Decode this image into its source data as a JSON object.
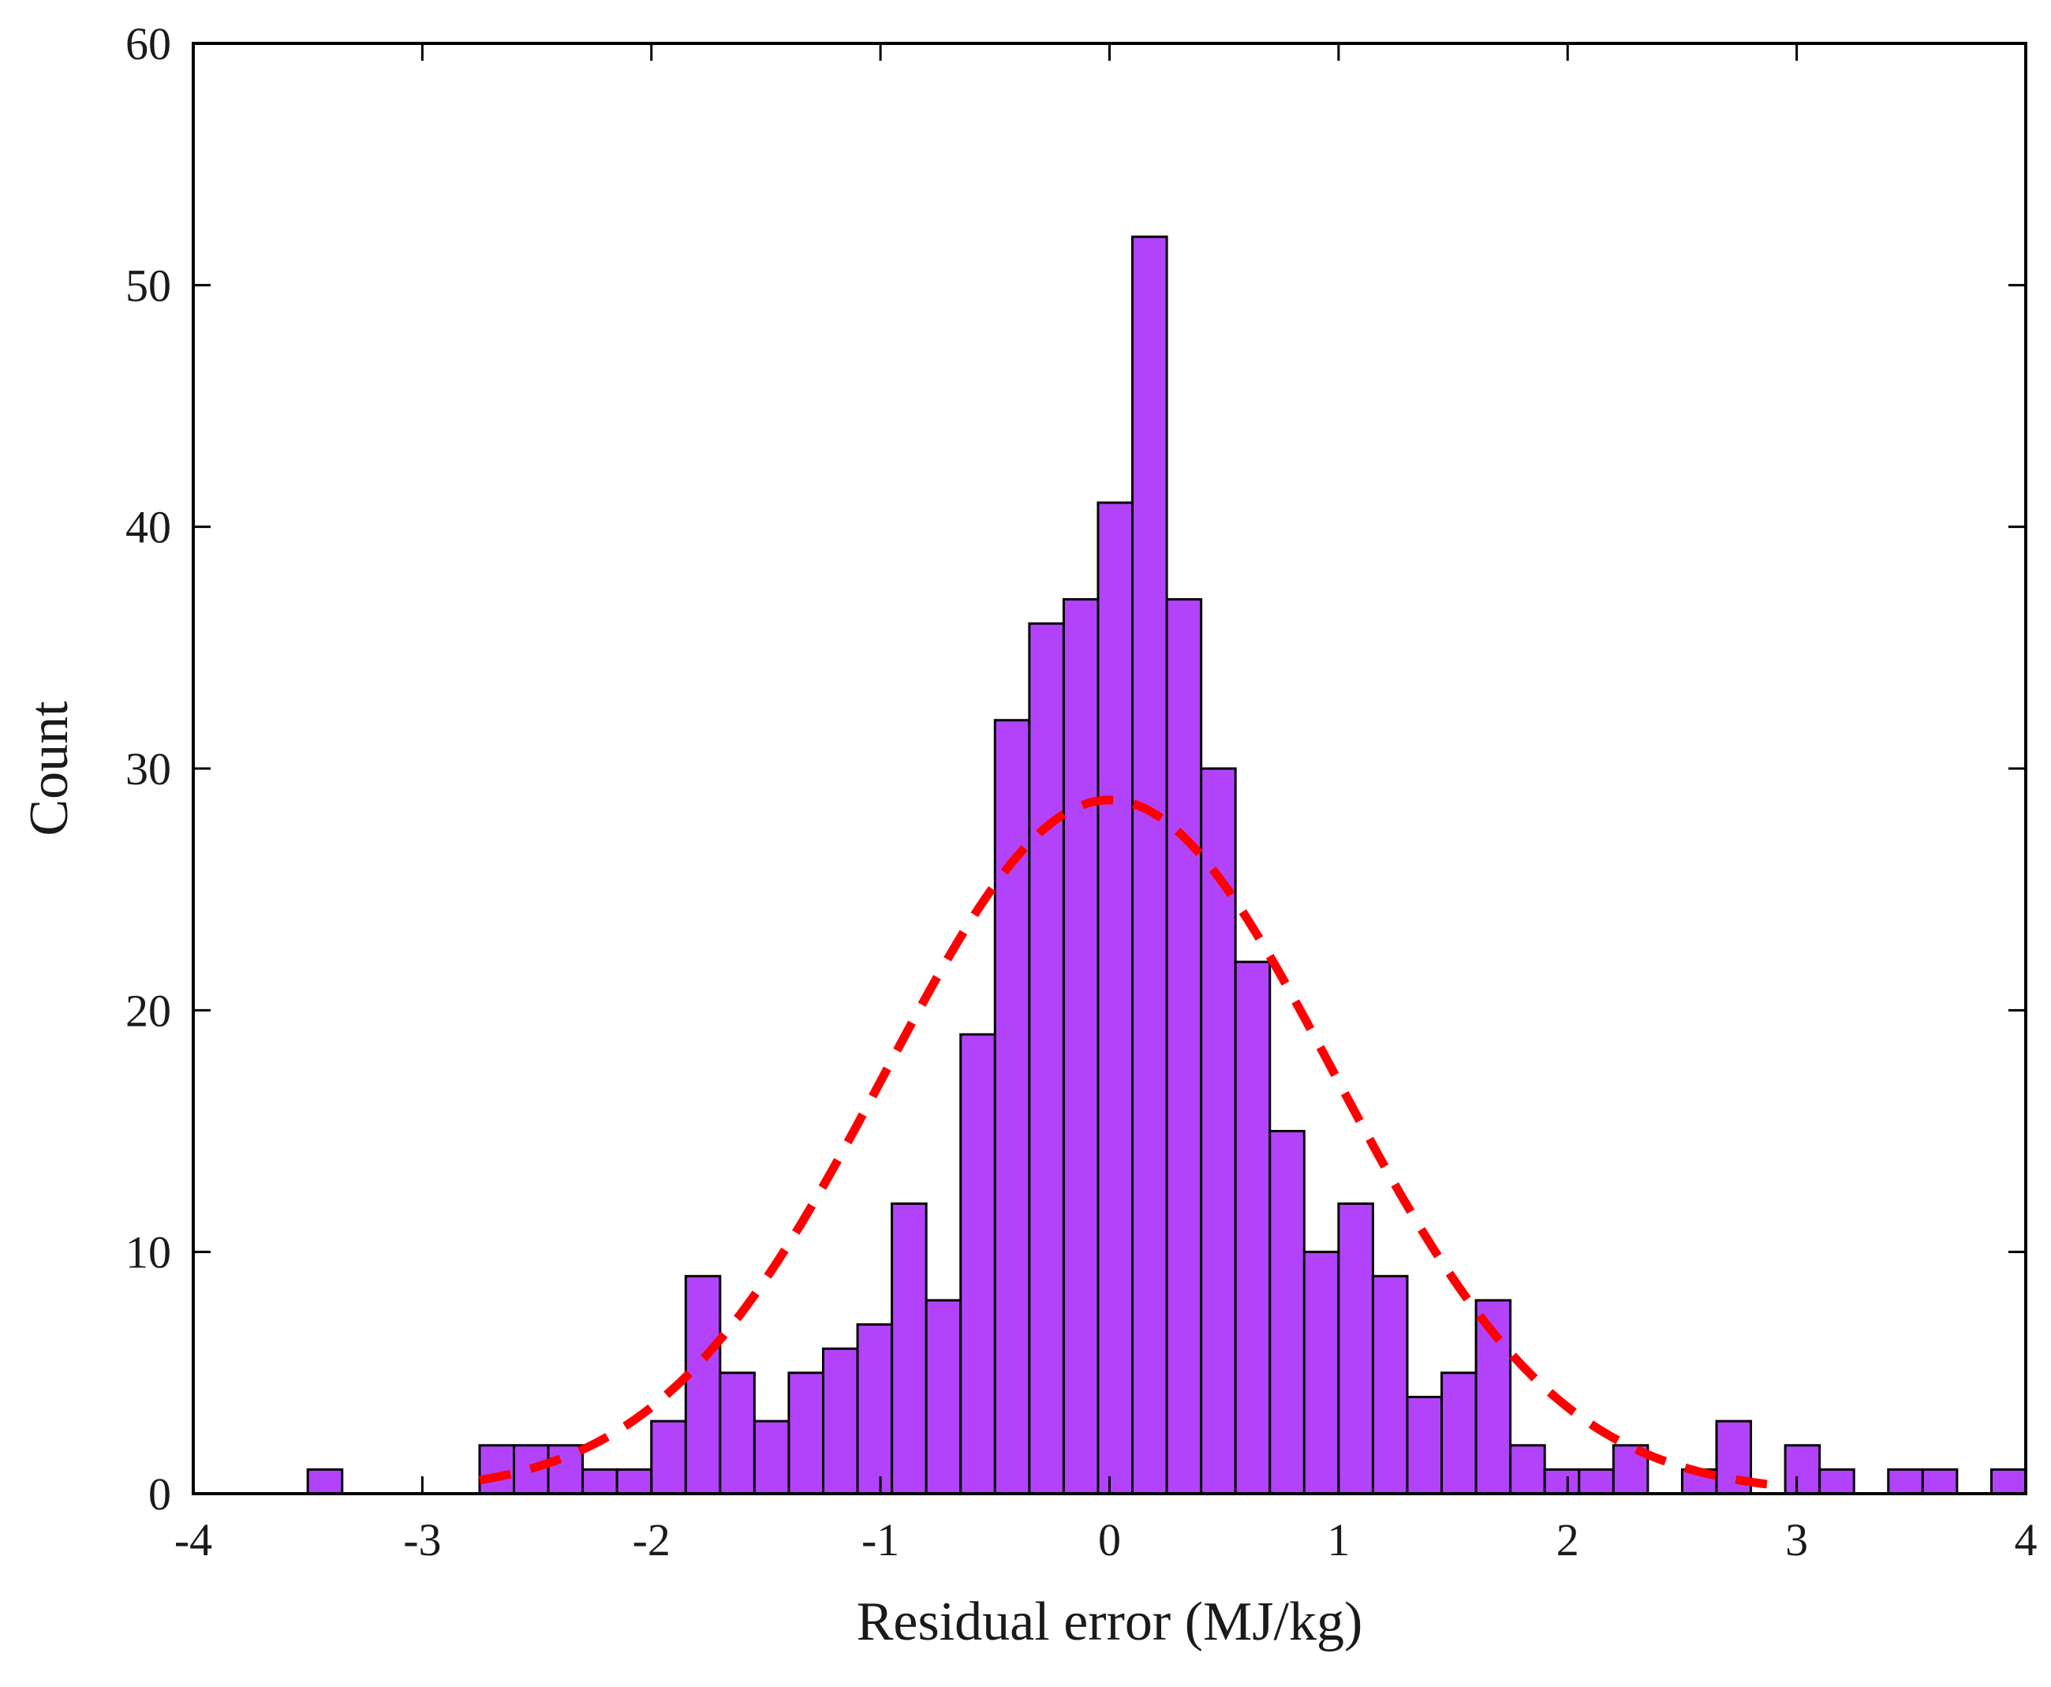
{
  "chart_data": {
    "type": "bar",
    "xlabel": "Residual error (MJ/kg)",
    "ylabel": "Count",
    "xlim": [
      -4,
      4
    ],
    "ylim": [
      0,
      60
    ],
    "xticks": [
      -4,
      -3,
      -2,
      -1,
      0,
      1,
      2,
      3,
      4
    ],
    "yticks": [
      0,
      10,
      20,
      30,
      40,
      50,
      60
    ],
    "xtick_labels": [
      "-4",
      "-3",
      "-2",
      "-1",
      "0",
      "1",
      "2",
      "3",
      "4"
    ],
    "ytick_labels": [
      "0",
      "10",
      "20",
      "30",
      "40",
      "50",
      "60"
    ],
    "grid": false,
    "bin_width": 0.15,
    "bins": [
      {
        "x0": -3.5,
        "x1": -3.35,
        "count": 1
      },
      {
        "x0": -3.35,
        "x1": -3.2,
        "count": 0
      },
      {
        "x0": -3.2,
        "x1": -3.05,
        "count": 0
      },
      {
        "x0": -3.05,
        "x1": -2.9,
        "count": 0
      },
      {
        "x0": -2.9,
        "x1": -2.75,
        "count": 0
      },
      {
        "x0": -2.75,
        "x1": -2.6,
        "count": 2
      },
      {
        "x0": -2.6,
        "x1": -2.45,
        "count": 2
      },
      {
        "x0": -2.45,
        "x1": -2.3,
        "count": 2
      },
      {
        "x0": -2.3,
        "x1": -2.15,
        "count": 1
      },
      {
        "x0": -2.15,
        "x1": -2.0,
        "count": 1
      },
      {
        "x0": -2.0,
        "x1": -1.85,
        "count": 3
      },
      {
        "x0": -1.85,
        "x1": -1.7,
        "count": 9
      },
      {
        "x0": -1.7,
        "x1": -1.55,
        "count": 5
      },
      {
        "x0": -1.55,
        "x1": -1.4,
        "count": 3
      },
      {
        "x0": -1.4,
        "x1": -1.25,
        "count": 5
      },
      {
        "x0": -1.25,
        "x1": -1.1,
        "count": 6
      },
      {
        "x0": -1.1,
        "x1": -0.95,
        "count": 7
      },
      {
        "x0": -0.95,
        "x1": -0.8,
        "count": 12
      },
      {
        "x0": -0.8,
        "x1": -0.65,
        "count": 8
      },
      {
        "x0": -0.65,
        "x1": -0.5,
        "count": 19
      },
      {
        "x0": -0.5,
        "x1": -0.35,
        "count": 32
      },
      {
        "x0": -0.35,
        "x1": -0.2,
        "count": 36
      },
      {
        "x0": -0.2,
        "x1": -0.05,
        "count": 37
      },
      {
        "x0": -0.05,
        "x1": 0.1,
        "count": 41
      },
      {
        "x0": 0.1,
        "x1": 0.25,
        "count": 52
      },
      {
        "x0": 0.25,
        "x1": 0.4,
        "count": 37
      },
      {
        "x0": 0.4,
        "x1": 0.55,
        "count": 30
      },
      {
        "x0": 0.55,
        "x1": 0.7,
        "count": 22
      },
      {
        "x0": 0.7,
        "x1": 0.85,
        "count": 15
      },
      {
        "x0": 0.85,
        "x1": 1.0,
        "count": 10
      },
      {
        "x0": 1.0,
        "x1": 1.15,
        "count": 12
      },
      {
        "x0": 1.15,
        "x1": 1.3,
        "count": 9
      },
      {
        "x0": 1.3,
        "x1": 1.45,
        "count": 4
      },
      {
        "x0": 1.45,
        "x1": 1.6,
        "count": 5
      },
      {
        "x0": 1.6,
        "x1": 1.75,
        "count": 8
      },
      {
        "x0": 1.75,
        "x1": 1.9,
        "count": 2
      },
      {
        "x0": 1.9,
        "x1": 2.05,
        "count": 1
      },
      {
        "x0": 2.05,
        "x1": 2.2,
        "count": 1
      },
      {
        "x0": 2.2,
        "x1": 2.35,
        "count": 2
      },
      {
        "x0": 2.35,
        "x1": 2.5,
        "count": 0
      },
      {
        "x0": 2.5,
        "x1": 2.65,
        "count": 1
      },
      {
        "x0": 2.65,
        "x1": 2.8,
        "count": 3
      },
      {
        "x0": 2.8,
        "x1": 2.95,
        "count": 0
      },
      {
        "x0": 2.95,
        "x1": 3.1,
        "count": 2
      },
      {
        "x0": 3.1,
        "x1": 3.25,
        "count": 1
      },
      {
        "x0": 3.25,
        "x1": 3.4,
        "count": 0
      },
      {
        "x0": 3.4,
        "x1": 3.55,
        "count": 1
      },
      {
        "x0": 3.55,
        "x1": 3.7,
        "count": 1
      },
      {
        "x0": 3.7,
        "x1": 3.85,
        "count": 0
      },
      {
        "x0": 3.85,
        "x1": 4.0,
        "count": 1
      }
    ],
    "fit_curve": {
      "type": "normal",
      "mean": 0.0,
      "peak": 28.7,
      "sigma": 0.98,
      "x_range": [
        -2.75,
        2.95
      ],
      "style": "dashed"
    },
    "colors": {
      "bar_fill": "#b343fb",
      "bar_edge": "#000000",
      "fit_line": "#ff0000",
      "axes": "#000000"
    }
  }
}
